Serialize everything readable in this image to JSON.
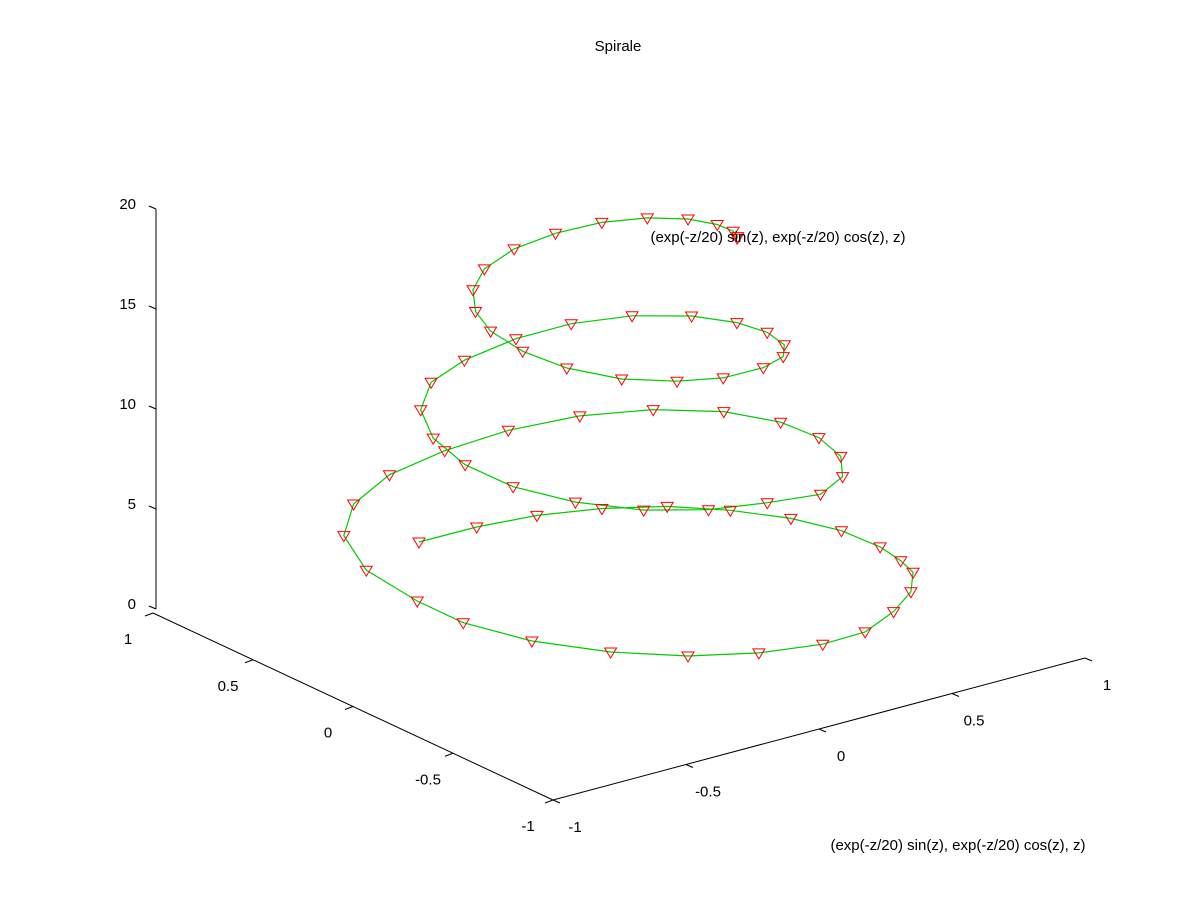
{
  "chart_data": {
    "type": "line3d",
    "title": "Spirale",
    "xlabel": "",
    "ylabel": "",
    "zlabel": "",
    "legend_label": "(exp(-z/20) sin(z), exp(-z/20) cos(z), z)",
    "legend_placement": "top-right",
    "caption": "(exp(-z/20) sin(z), exp(-z/20) cos(z), z)",
    "x_ticks": [
      "-1",
      "-0.5",
      "0",
      "0.5",
      "1"
    ],
    "y_ticks": [
      "-1",
      "-0.5",
      "0",
      "0.5",
      "1"
    ],
    "z_ticks": [
      "0",
      "5",
      "10",
      "15",
      "20"
    ],
    "xlim": [
      -1,
      1
    ],
    "ylim": [
      -1,
      1
    ],
    "zlim": [
      0,
      20
    ],
    "grid": false,
    "line_color": "#00cc00",
    "marker": "triangle-down",
    "marker_color": "#ff0000",
    "series": [
      {
        "points": [
          {
            "x": 0.0,
            "y": 1.0,
            "z": 0.0
          },
          {
            "x": 0.1943,
            "y": 0.9701,
            "z": 0.2
          },
          {
            "x": 0.3774,
            "y": 0.9124,
            "z": 0.4
          },
          {
            "x": 0.5479,
            "y": 0.8141,
            "z": 0.6
          },
          {
            "x": 0.6944,
            "y": 0.6826,
            "z": 0.8
          },
          {
            "x": 0.8048,
            "y": 0.514,
            "z": 1.0
          },
          {
            "x": 0.8878,
            "y": 0.3214,
            "z": 1.2
          },
          {
            "x": 0.9255,
            "y": 0.1187,
            "z": 1.4
          },
          {
            "x": 0.9148,
            "y": -0.089,
            "z": 1.6
          },
          {
            "x": 0.8725,
            "y": -0.2479,
            "z": 1.8
          },
          {
            "x": 0.8226,
            "y": -0.3765,
            "z": 2.0
          },
          {
            "x": 0.6866,
            "y": -0.5461,
            "z": 2.3
          },
          {
            "x": 0.5133,
            "y": -0.6901,
            "z": 2.6
          },
          {
            "x": 0.3107,
            "y": -0.8175,
            "z": 2.9
          },
          {
            "x": 0.1217,
            "y": -0.8569,
            "z": 3.14
          },
          {
            "x": -0.1026,
            "y": -0.8359,
            "z": 3.4
          },
          {
            "x": -0.3185,
            "y": -0.7685,
            "z": 3.7
          },
          {
            "x": -0.5144,
            "y": -0.642,
            "z": 4.0
          },
          {
            "x": -0.6768,
            "y": -0.4645,
            "z": 4.3
          },
          {
            "x": -0.7784,
            "y": -0.2563,
            "z": 4.6
          },
          {
            "x": -0.7926,
            "y": -0.045,
            "z": 4.75
          },
          {
            "x": -0.7823,
            "y": 0.2228,
            "z": 5.0
          },
          {
            "x": -0.6898,
            "y": 0.4588,
            "z": 5.3
          },
          {
            "x": -0.5356,
            "y": 0.6148,
            "z": 5.6
          },
          {
            "x": -0.3311,
            "y": 0.7076,
            "z": 5.9
          },
          {
            "x": -0.1059,
            "y": 0.7307,
            "z": 6.2
          },
          {
            "x": 0.1201,
            "y": 0.7131,
            "z": 6.5
          },
          {
            "x": 0.3342,
            "y": 0.6404,
            "z": 6.8
          },
          {
            "x": 0.5114,
            "y": 0.5093,
            "z": 7.1
          },
          {
            "x": 0.6391,
            "y": 0.3261,
            "z": 7.4
          },
          {
            "x": 0.6904,
            "y": 0.1101,
            "z": 7.7
          },
          {
            "x": 0.6724,
            "y": -0.1054,
            "z": 8.0
          },
          {
            "x": 0.5976,
            "y": -0.3141,
            "z": 8.3
          },
          {
            "x": 0.4678,
            "y": -0.4956,
            "z": 8.6
          },
          {
            "x": 0.2938,
            "y": -0.6166,
            "z": 8.9
          },
          {
            "x": 0.0826,
            "y": -0.6318,
            "z": 9.3
          },
          {
            "x": -0.1247,
            "y": -0.6136,
            "z": 9.6
          },
          {
            "x": -0.3126,
            "y": -0.5392,
            "z": 9.9
          },
          {
            "x": -0.466,
            "y": -0.4017,
            "z": 10.2
          },
          {
            "x": -0.5667,
            "y": -0.224,
            "z": 10.5
          },
          {
            "x": -0.5994,
            "y": -0.0278,
            "z": 10.8
          },
          {
            "x": -0.5706,
            "y": 0.1701,
            "z": 11.1
          },
          {
            "x": -0.4861,
            "y": 0.3448,
            "z": 11.4
          },
          {
            "x": -0.3512,
            "y": 0.4723,
            "z": 11.7
          },
          {
            "x": -0.189,
            "y": 0.5215,
            "z": 12.0
          },
          {
            "x": 0.0133,
            "y": 0.533,
            "z": 12.3
          },
          {
            "x": 0.1917,
            "y": 0.4939,
            "z": 12.6
          },
          {
            "x": 0.3469,
            "y": 0.396,
            "z": 12.9
          },
          {
            "x": 0.4577,
            "y": 0.2457,
            "z": 13.2
          },
          {
            "x": 0.5014,
            "y": 0.0776,
            "z": 13.5
          },
          {
            "x": 0.4941,
            "y": -0.084,
            "z": 13.8
          },
          {
            "x": 0.4403,
            "y": -0.241,
            "z": 14.1
          },
          {
            "x": 0.3462,
            "y": -0.3605,
            "z": 14.4
          },
          {
            "x": 0.2111,
            "y": -0.4409,
            "z": 14.7
          },
          {
            "x": 0.0324,
            "y": -0.4781,
            "z": 15.0
          },
          {
            "x": -0.1259,
            "y": -0.4574,
            "z": 15.3
          },
          {
            "x": -0.2775,
            "y": -0.3826,
            "z": 15.6
          },
          {
            "x": -0.3836,
            "y": -0.249,
            "z": 15.9
          },
          {
            "x": -0.4342,
            "y": -0.0958,
            "z": 16.2
          },
          {
            "x": -0.4383,
            "y": 0.0591,
            "z": 16.5
          },
          {
            "x": -0.4048,
            "y": 0.1792,
            "z": 16.8
          },
          {
            "x": -0.3307,
            "y": 0.2902,
            "z": 17.1
          },
          {
            "x": -0.227,
            "y": 0.3712,
            "z": 17.4
          },
          {
            "x": -0.084,
            "y": 0.4128,
            "z": 17.7
          },
          {
            "x": 0.0643,
            "y": 0.403,
            "z": 18.0
          },
          {
            "x": 0.1998,
            "y": 0.3516,
            "z": 18.3
          },
          {
            "x": 0.3011,
            "y": 0.2592,
            "z": 18.6
          },
          {
            "x": 0.3623,
            "y": 0.1369,
            "z": 18.9
          },
          {
            "x": 0.3733,
            "y": 0.0056,
            "z": 19.2
          },
          {
            "x": 0.3465,
            "y": -0.1099,
            "z": 19.5
          },
          {
            "x": 0.2991,
            "y": -0.1959,
            "z": 19.8
          },
          {
            "x": 0.2692,
            "y": -0.233,
            "z": 20.0
          }
        ]
      }
    ]
  }
}
